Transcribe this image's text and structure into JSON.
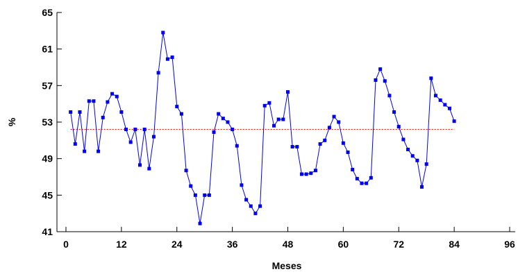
{
  "chart_data": {
    "type": "line",
    "xlabel": "Meses",
    "ylabel": "%",
    "xlim": [
      0,
      96
    ],
    "ylim": [
      41,
      65
    ],
    "xticks": [
      0,
      12,
      24,
      36,
      48,
      60,
      72,
      84,
      96
    ],
    "yticks": [
      41,
      45,
      49,
      53,
      57,
      61,
      65
    ],
    "grid": false,
    "series": [
      {
        "color": "#0000ee",
        "marker": "square",
        "x": [
          1,
          2,
          3,
          4,
          5,
          6,
          7,
          8,
          9,
          10,
          11,
          12,
          13,
          14,
          15,
          16,
          17,
          18,
          19,
          20,
          21,
          22,
          23,
          24,
          25,
          26,
          27,
          28,
          29,
          30,
          31,
          32,
          33,
          34,
          35,
          36,
          37,
          38,
          39,
          40,
          41,
          42,
          43,
          44,
          45,
          46,
          47,
          48,
          49,
          50,
          51,
          52,
          53,
          54,
          55,
          56,
          57,
          58,
          59,
          60,
          61,
          62,
          63,
          64,
          65,
          66,
          67,
          68,
          69,
          70,
          71,
          72,
          73,
          74,
          75,
          76,
          77,
          78,
          79,
          80,
          81,
          82,
          83,
          84
        ],
        "y": [
          54.1,
          50.6,
          54.1,
          49.8,
          55.3,
          55.3,
          49.8,
          53.5,
          55.2,
          56.1,
          55.8,
          54.1,
          52.2,
          50.8,
          52.2,
          48.3,
          52.2,
          47.9,
          51.4,
          58.4,
          62.8,
          59.9,
          60.1,
          54.7,
          53.9,
          47.7,
          46.0,
          45.0,
          41.9,
          45.0,
          45.0,
          51.9,
          53.9,
          53.4,
          53.0,
          52.2,
          50.4,
          46.1,
          44.5,
          43.8,
          43.0,
          43.8,
          54.8,
          55.1,
          52.6,
          53.3,
          53.3,
          56.3,
          50.3,
          50.3,
          47.3,
          47.3,
          47.4,
          47.7,
          50.6,
          51.0,
          52.4,
          53.6,
          53.0,
          50.7,
          49.7,
          47.8,
          46.8,
          46.3,
          46.3,
          46.9,
          57.6,
          58.8,
          57.5,
          55.9,
          54.1,
          52.5,
          51.1,
          50.0,
          49.3,
          48.8,
          45.9,
          48.4,
          57.8,
          55.9,
          55.4,
          54.9,
          54.5,
          53.1
        ]
      }
    ],
    "reference_line": {
      "y": 52.2,
      "color": "#ff0000",
      "style": "dotted"
    }
  }
}
